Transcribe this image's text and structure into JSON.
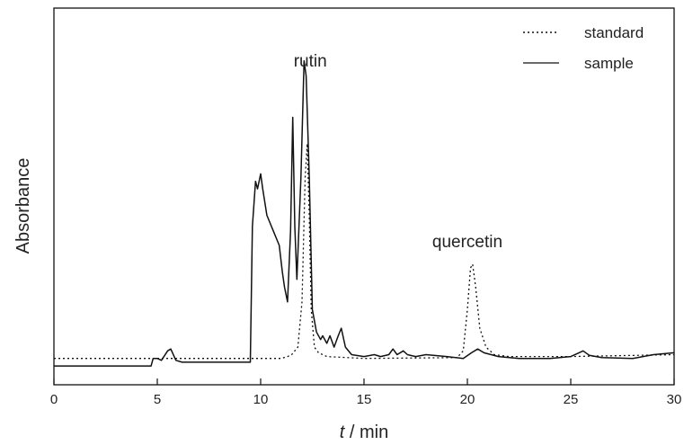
{
  "chart_data": {
    "type": "line",
    "xlabel_italic": "t",
    "xlabel_rest": " / min",
    "ylabel": "Absorbance",
    "xlim": [
      0,
      30
    ],
    "ylim": [
      0,
      1
    ],
    "x_ticks": [
      0,
      5,
      10,
      15,
      20,
      25,
      30
    ],
    "y_ticks_labeled": false,
    "grid": false,
    "legend_position": "top-right",
    "annotations": [
      {
        "text": "rutin",
        "x": 12.4,
        "y": 0.845
      },
      {
        "text": "quercetin",
        "x": 20.0,
        "y": 0.365
      }
    ],
    "series": [
      {
        "name": "standard",
        "style": "dotted",
        "color": "#111111",
        "points": [
          [
            0,
            0.07
          ],
          [
            5,
            0.07
          ],
          [
            10,
            0.07
          ],
          [
            11,
            0.07
          ],
          [
            11.3,
            0.075
          ],
          [
            11.5,
            0.08
          ],
          [
            11.8,
            0.1
          ],
          [
            12.0,
            0.22
          ],
          [
            12.15,
            0.55
          ],
          [
            12.25,
            0.64
          ],
          [
            12.35,
            0.45
          ],
          [
            12.45,
            0.2
          ],
          [
            12.6,
            0.1
          ],
          [
            12.8,
            0.085
          ],
          [
            13.2,
            0.075
          ],
          [
            15,
            0.07
          ],
          [
            19.5,
            0.072
          ],
          [
            19.8,
            0.09
          ],
          [
            20.0,
            0.2
          ],
          [
            20.15,
            0.31
          ],
          [
            20.25,
            0.32
          ],
          [
            20.4,
            0.26
          ],
          [
            20.6,
            0.15
          ],
          [
            20.9,
            0.1
          ],
          [
            21.3,
            0.08
          ],
          [
            22,
            0.075
          ],
          [
            25,
            0.075
          ],
          [
            30,
            0.08
          ]
        ]
      },
      {
        "name": "sample",
        "style": "solid",
        "color": "#111111",
        "points": [
          [
            0,
            0.05
          ],
          [
            4.7,
            0.05
          ],
          [
            4.8,
            0.07
          ],
          [
            5.0,
            0.07
          ],
          [
            5.2,
            0.065
          ],
          [
            5.5,
            0.09
          ],
          [
            5.65,
            0.095
          ],
          [
            5.9,
            0.065
          ],
          [
            6.2,
            0.06
          ],
          [
            9.5,
            0.06
          ],
          [
            9.6,
            0.42
          ],
          [
            9.75,
            0.54
          ],
          [
            9.85,
            0.52
          ],
          [
            10.0,
            0.56
          ],
          [
            10.1,
            0.52
          ],
          [
            10.3,
            0.45
          ],
          [
            10.6,
            0.41
          ],
          [
            10.9,
            0.37
          ],
          [
            11.05,
            0.3
          ],
          [
            11.15,
            0.26
          ],
          [
            11.3,
            0.22
          ],
          [
            11.45,
            0.41
          ],
          [
            11.55,
            0.71
          ],
          [
            11.65,
            0.42
          ],
          [
            11.75,
            0.28
          ],
          [
            11.95,
            0.55
          ],
          [
            12.1,
            0.86
          ],
          [
            12.2,
            0.82
          ],
          [
            12.35,
            0.55
          ],
          [
            12.5,
            0.2
          ],
          [
            12.7,
            0.14
          ],
          [
            12.9,
            0.12
          ],
          [
            13.0,
            0.13
          ],
          [
            13.2,
            0.11
          ],
          [
            13.35,
            0.13
          ],
          [
            13.55,
            0.1
          ],
          [
            13.75,
            0.13
          ],
          [
            13.9,
            0.15
          ],
          [
            14.1,
            0.1
          ],
          [
            14.4,
            0.08
          ],
          [
            15.0,
            0.075
          ],
          [
            15.5,
            0.08
          ],
          [
            15.8,
            0.075
          ],
          [
            16.2,
            0.08
          ],
          [
            16.4,
            0.095
          ],
          [
            16.6,
            0.08
          ],
          [
            16.9,
            0.09
          ],
          [
            17.1,
            0.08
          ],
          [
            17.5,
            0.075
          ],
          [
            18.0,
            0.08
          ],
          [
            19.0,
            0.075
          ],
          [
            19.8,
            0.07
          ],
          [
            20.2,
            0.085
          ],
          [
            20.5,
            0.095
          ],
          [
            20.8,
            0.085
          ],
          [
            21.5,
            0.075
          ],
          [
            22.5,
            0.07
          ],
          [
            24.0,
            0.07
          ],
          [
            25.0,
            0.075
          ],
          [
            25.4,
            0.085
          ],
          [
            25.6,
            0.09
          ],
          [
            25.9,
            0.078
          ],
          [
            26.5,
            0.072
          ],
          [
            28,
            0.07
          ],
          [
            29,
            0.08
          ],
          [
            30,
            0.085
          ]
        ]
      }
    ]
  }
}
